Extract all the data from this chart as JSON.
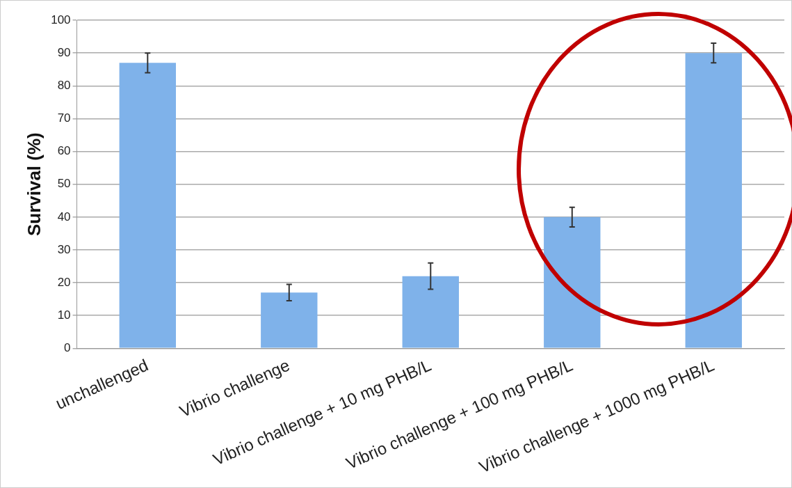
{
  "chart_data": {
    "type": "bar",
    "ylabel": "Survival (%)",
    "categories": [
      "unchallenged",
      "Vibrio challenge",
      "Vibrio challenge + 10 mg PHB/L",
      "Vibrio challenge + 100 mg PHB/L",
      "Vibrio challenge + 1000 mg PHB/L"
    ],
    "values": [
      87,
      17,
      22,
      40,
      90
    ],
    "errors": [
      3,
      2.5,
      4,
      3,
      3
    ],
    "color": "#7fb2ea",
    "ylim": [
      0,
      100
    ],
    "yticks": [
      0,
      10,
      20,
      30,
      40,
      50,
      60,
      70,
      80,
      90,
      100
    ],
    "grid": "y",
    "legend": false
  }
}
